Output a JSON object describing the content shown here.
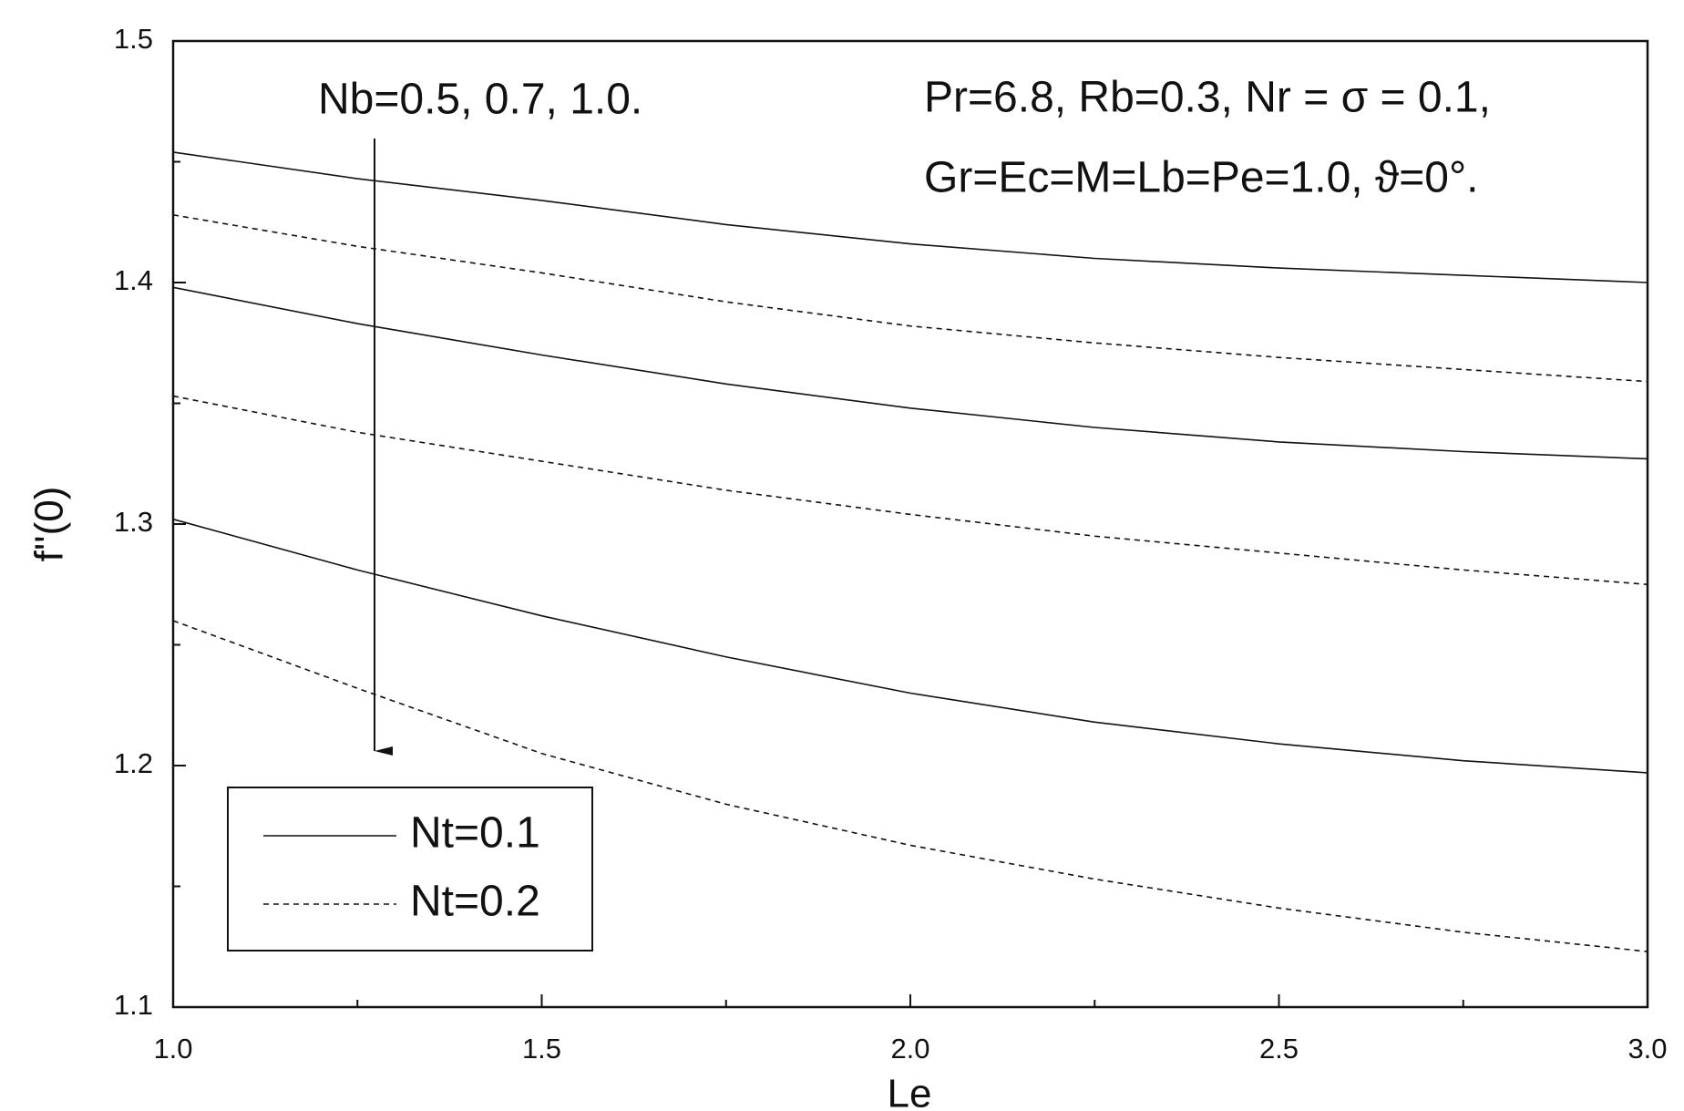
{
  "chart_data": {
    "type": "line",
    "x_label": "Le",
    "y_label": "f''(0)",
    "annotations": [
      "Nb=0.5, 0.7, 1.0.",
      "Pr=6.8, Rb=0.3, Nr = σ = 0.1,",
      "Gr=Ec=M=Lb=Pe=1.0, ϑ=0°."
    ],
    "x": [
      1.0,
      1.25,
      1.5,
      1.75,
      2.0,
      2.25,
      2.5,
      2.75,
      3.0
    ],
    "series": [
      {
        "name": "Nt=0.1",
        "color": "#111111",
        "dash": "solid",
        "values": [
          1.454,
          1.443,
          1.434,
          1.424,
          1.416,
          1.41,
          1.406,
          1.403,
          1.4
        ]
      },
      {
        "name": "Nt=0.2",
        "color": "#111111",
        "dash": "dashed",
        "values": [
          1.428,
          1.415,
          1.404,
          1.392,
          1.382,
          1.375,
          1.369,
          1.364,
          1.359
        ]
      },
      {
        "name": "Nt=0.1",
        "color": "#111111",
        "dash": "solid",
        "values": [
          1.398,
          1.383,
          1.37,
          1.358,
          1.348,
          1.34,
          1.334,
          1.33,
          1.327
        ]
      },
      {
        "name": "Nt=0.2",
        "color": "#111111",
        "dash": "dashed",
        "values": [
          1.353,
          1.338,
          1.326,
          1.314,
          1.304,
          1.295,
          1.288,
          1.281,
          1.275
        ]
      },
      {
        "name": "Nt=0.1",
        "color": "#111111",
        "dash": "solid",
        "values": [
          1.302,
          1.281,
          1.262,
          1.245,
          1.23,
          1.218,
          1.209,
          1.202,
          1.197
        ]
      },
      {
        "name": "Nt=0.2",
        "color": "#111111",
        "dash": "dashed",
        "values": [
          1.26,
          1.232,
          1.205,
          1.184,
          1.167,
          1.153,
          1.141,
          1.131,
          1.123
        ]
      }
    ],
    "xlim": [
      1.0,
      3.0
    ],
    "xticks": [
      {
        "value": 1,
        "label": "1.0"
      },
      1.5,
      {
        "value": 2,
        "label": "2.0"
      },
      2.5,
      {
        "value": 3,
        "label": "3.0"
      }
    ],
    "ylim": [
      1.1,
      1.5
    ],
    "yticks": [
      1.1,
      1.2,
      1.3,
      1.4,
      1.5
    ],
    "grid": false,
    "legend": "lower left"
  }
}
